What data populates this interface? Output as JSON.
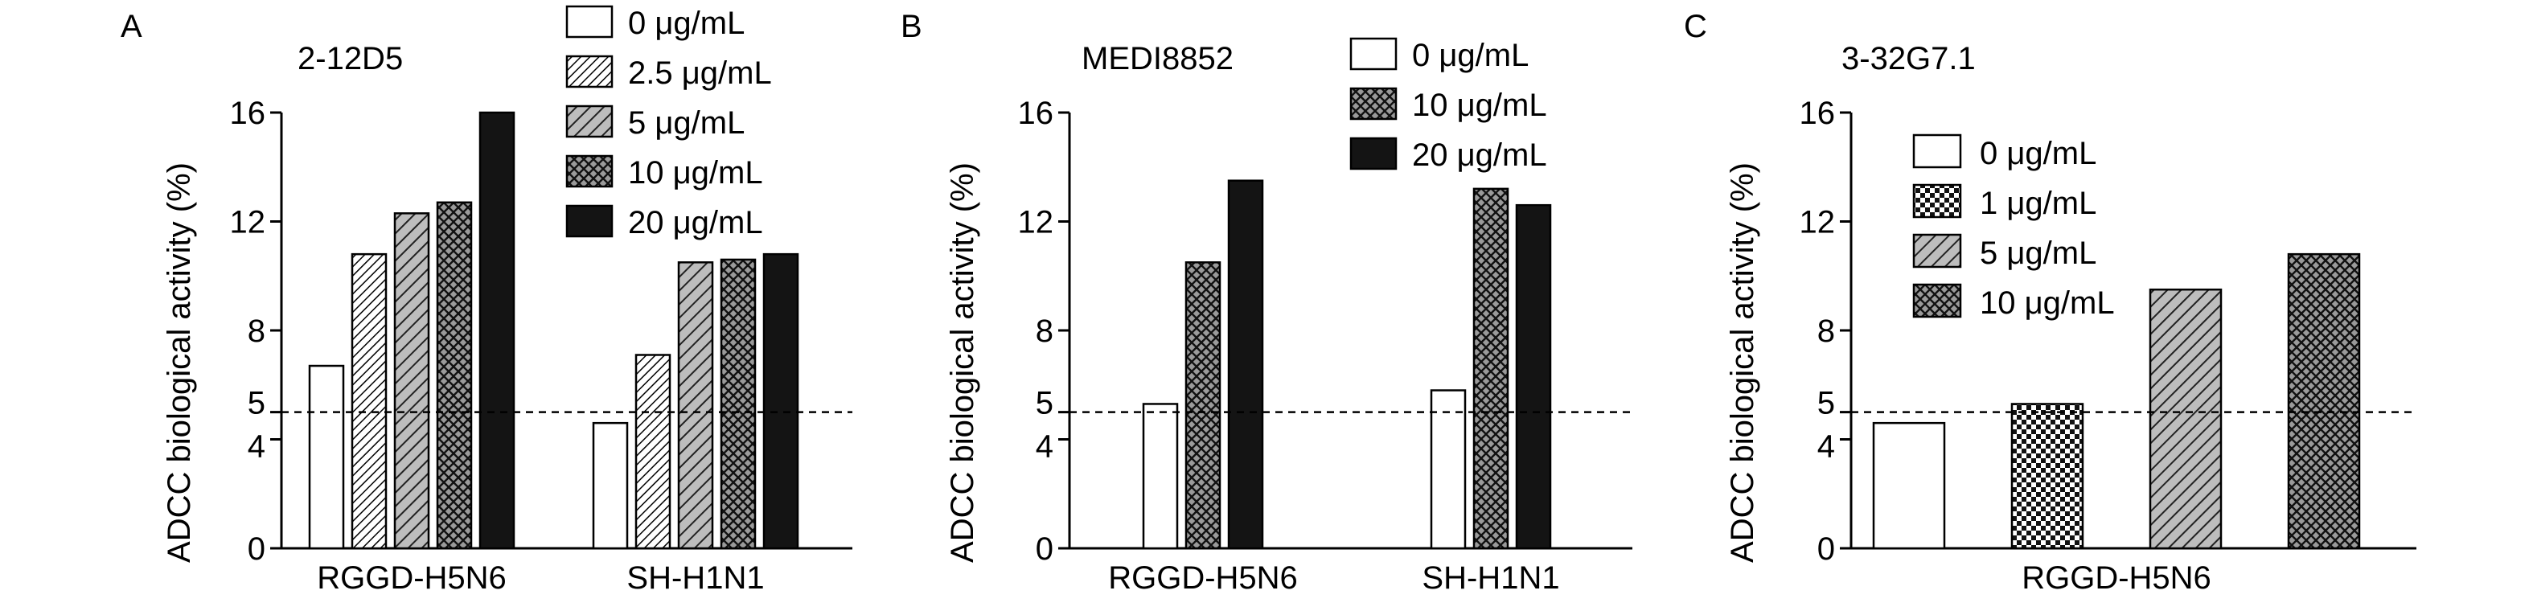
{
  "colors": {
    "stroke": "#000000",
    "fill_white": "#ffffff",
    "fill_black": "#141414",
    "ref_line": "#000000"
  },
  "chart_data": [
    {
      "panel": "A",
      "type": "bar",
      "title": "2-12D5",
      "ylabel": "ADCC biological activity (%)",
      "xlabel": "",
      "ylim": [
        0,
        16
      ],
      "yticks": [
        "0",
        "4",
        "5",
        "8",
        "12",
        "16"
      ],
      "ytick_values": [
        0,
        4,
        5,
        8,
        12,
        16
      ],
      "reference_line": 5,
      "grid": false,
      "legend_position": "top-right",
      "categories": [
        "RGGD-H5N6",
        "SH-H1N1"
      ],
      "series": [
        {
          "name": "0 μg/mL",
          "pattern": "white",
          "values": [
            6.7,
            4.6
          ]
        },
        {
          "name": "2.5 μg/mL",
          "pattern": "fine-diagonal",
          "values": [
            10.8,
            7.1
          ]
        },
        {
          "name": "5 μg/mL",
          "pattern": "diagonal",
          "values": [
            12.3,
            10.5
          ]
        },
        {
          "name": "10 μg/mL",
          "pattern": "crosshatch",
          "values": [
            12.7,
            10.6
          ]
        },
        {
          "name": "20 μg/mL",
          "pattern": "black",
          "values": [
            16.0,
            10.8
          ]
        }
      ]
    },
    {
      "panel": "B",
      "type": "bar",
      "title": "MEDI8852",
      "ylabel": "ADCC biological activity (%)",
      "xlabel": "",
      "ylim": [
        0,
        16
      ],
      "yticks": [
        "0",
        "4",
        "5",
        "8",
        "12",
        "16"
      ],
      "ytick_values": [
        0,
        4,
        5,
        8,
        12,
        16
      ],
      "reference_line": 5,
      "grid": false,
      "legend_position": "top-right",
      "categories": [
        "RGGD-H5N6",
        "SH-H1N1"
      ],
      "series": [
        {
          "name": "0 μg/mL",
          "pattern": "white",
          "values": [
            5.3,
            5.8
          ]
        },
        {
          "name": "10 μg/mL",
          "pattern": "crosshatch",
          "values": [
            10.5,
            13.2
          ]
        },
        {
          "name": "20 μg/mL",
          "pattern": "black",
          "values": [
            13.5,
            12.6
          ]
        }
      ]
    },
    {
      "panel": "C",
      "type": "bar",
      "title": "3-32G7.1",
      "ylabel": "ADCC biological activity (%)",
      "xlabel": "",
      "ylim": [
        0,
        16
      ],
      "yticks": [
        "0",
        "4",
        "5",
        "8",
        "12",
        "16"
      ],
      "ytick_values": [
        0,
        4,
        5,
        8,
        12,
        16
      ],
      "reference_line": 5,
      "grid": false,
      "legend_position": "top-left",
      "categories": [
        "RGGD-H5N6"
      ],
      "series": [
        {
          "name": "0 μg/mL",
          "pattern": "white",
          "values": [
            4.6
          ]
        },
        {
          "name": "1 μg/mL",
          "pattern": "checker",
          "values": [
            5.3
          ]
        },
        {
          "name": "5 μg/mL",
          "pattern": "diagonal",
          "values": [
            9.5
          ]
        },
        {
          "name": "10 μg/mL",
          "pattern": "crosshatch",
          "values": [
            10.8
          ]
        }
      ]
    }
  ]
}
